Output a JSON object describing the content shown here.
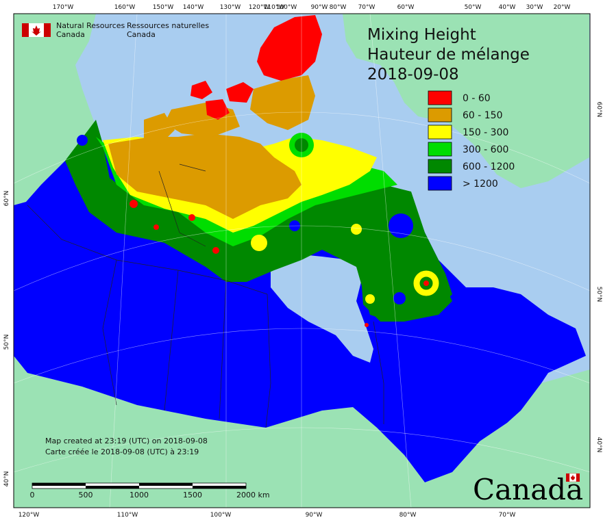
{
  "header": {
    "org_en_line1": "Natural Resources",
    "org_en_line2": "Canada",
    "org_fr_line1": "Ressources naturelles",
    "org_fr_line2": "Canada"
  },
  "title": {
    "line1": "Mixing Height",
    "line2": "Hauteur de mélange",
    "date": "2018-09-08"
  },
  "legend": [
    {
      "label": "0 - 60",
      "color": "#ff0000"
    },
    {
      "label": "60 - 150",
      "color": "#dc9b00"
    },
    {
      "label": "150 - 300",
      "color": "#ffff00"
    },
    {
      "label": "300 - 600",
      "color": "#00dd00"
    },
    {
      "label": "600 - 1200",
      "color": "#008800"
    },
    {
      "label": "> 1200",
      "color": "#0000ff"
    }
  ],
  "credits": {
    "line_en": "Map created at 23:19 (UTC) on 2018-09-08",
    "line_fr": "Carte créée le 2018-09-08 (UTC) à 23:19"
  },
  "scalebar": {
    "labels": [
      "0",
      "500",
      "1000",
      "1500",
      "2000"
    ],
    "unit": "km"
  },
  "top_longitudes": [
    "170°W",
    "160°W",
    "150°W",
    "140°W",
    "130°W",
    "120°W",
    "110°W",
    "100°W",
    "90°W",
    "80°W",
    "70°W",
    "60°W",
    "50°W",
    "40°W",
    "30°W",
    "20°W"
  ],
  "bottom_longitudes": [
    "120°W",
    "110°W",
    "100°W",
    "90°W",
    "80°W",
    "70°W"
  ],
  "left_latitudes": [
    "60°N",
    "50°N",
    "40°N"
  ],
  "right_latitudes": [
    "60°N",
    "50°N",
    "40°N"
  ],
  "wordmark": "Canada",
  "colors": {
    "ocean": "#a9cdf0",
    "foreign_land": "#9be2b4",
    "frame": "#000000"
  }
}
